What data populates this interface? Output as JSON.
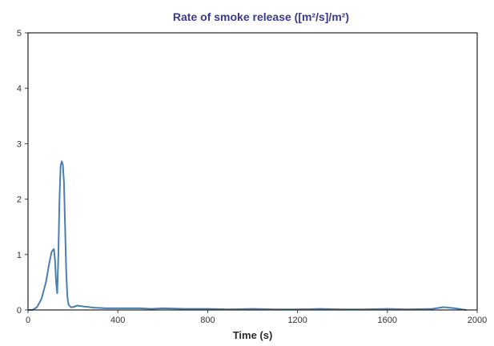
{
  "chart_data": {
    "type": "line",
    "title": "Rate of smoke release ([m²/s]/m²)",
    "xlabel": "Time (s)",
    "ylabel": "",
    "xlim": [
      0,
      2000
    ],
    "ylim": [
      0,
      5
    ],
    "xticks": [
      0,
      400,
      800,
      1200,
      1600,
      2000
    ],
    "yticks": [
      0,
      1,
      2,
      3,
      4,
      5
    ],
    "grid": false,
    "line_color": "#4a7fb0",
    "series": [
      {
        "x": [
          0,
          20,
          40,
          60,
          80,
          95,
          105,
          115,
          120,
          125,
          130,
          135,
          140,
          145,
          150,
          155,
          160,
          165,
          170,
          175,
          180,
          190,
          200,
          220,
          250,
          300,
          350,
          400,
          450,
          500,
          550,
          600,
          700,
          800,
          900,
          1000,
          1100,
          1200,
          1300,
          1400,
          1500,
          1600,
          1700,
          1800,
          1850,
          1900,
          1950
        ],
        "y": [
          0,
          0,
          0.05,
          0.2,
          0.5,
          0.85,
          1.05,
          1.1,
          0.9,
          0.5,
          0.3,
          1.0,
          2.0,
          2.6,
          2.68,
          2.62,
          2.3,
          1.5,
          0.7,
          0.25,
          0.1,
          0.05,
          0.05,
          0.08,
          0.06,
          0.04,
          0.03,
          0.03,
          0.03,
          0.03,
          0.02,
          0.03,
          0.02,
          0.02,
          0.01,
          0.02,
          0.01,
          0.01,
          0.02,
          0.01,
          0.01,
          0.02,
          0.01,
          0.02,
          0.05,
          0.03,
          0.0
        ]
      }
    ]
  }
}
